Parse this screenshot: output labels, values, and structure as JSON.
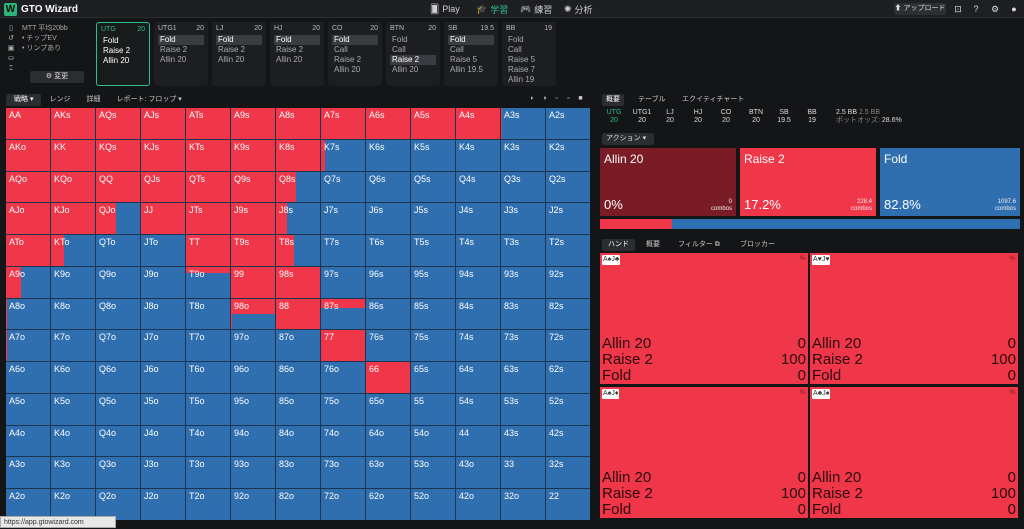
{
  "app": {
    "title": "GTO Wizard",
    "logo_letter": "W"
  },
  "nav": [
    {
      "label": "Play",
      "icon": "cards-icon"
    },
    {
      "label": "学習",
      "icon": "graduation-cap-icon",
      "active": true
    },
    {
      "label": "練習",
      "icon": "gamepad-icon"
    },
    {
      "label": "分析",
      "icon": "bulb-icon"
    }
  ],
  "header": {
    "upload_label": "⬆ アップロード"
  },
  "game": {
    "title": "MTT 平均20bb",
    "line1": "• チップEV",
    "line2": "• リンプあり",
    "change_label": "⚙ 変更"
  },
  "positions": [
    {
      "name": "UTG",
      "stack": "20",
      "actions": [
        "Fold",
        "Raise 2",
        "Allin 20"
      ],
      "selected": -1,
      "active": true
    },
    {
      "name": "UTG1",
      "stack": "20",
      "actions": [
        "Fold",
        "Raise 2",
        "Allin 20"
      ],
      "selected": 0
    },
    {
      "name": "LJ",
      "stack": "20",
      "actions": [
        "Fold",
        "Raise 2",
        "Allin 20"
      ],
      "selected": 0
    },
    {
      "name": "HJ",
      "stack": "20",
      "actions": [
        "Fold",
        "Raise 2",
        "Allin 20"
      ],
      "selected": 0
    },
    {
      "name": "CO",
      "stack": "20",
      "actions": [
        "Fold",
        "Call",
        "Raise 2",
        "Allin 20"
      ],
      "selected": 0
    },
    {
      "name": "BTN",
      "stack": "20",
      "actions": [
        "Fold",
        "Call",
        "Raise 2",
        "Allin 20"
      ],
      "selected": 2
    },
    {
      "name": "SB",
      "stack": "19.5",
      "actions": [
        "Fold",
        "Call",
        "Raise 5",
        "Allin 19.5"
      ],
      "selected": 0
    },
    {
      "name": "BB",
      "stack": "19",
      "actions": [
        "Fold",
        "Call",
        "Raise 5",
        "Raise 7",
        "Allin 19"
      ],
      "selected": -1
    }
  ],
  "left_tabs": {
    "strategy": "戦略 ▾",
    "range": "レンジ",
    "detail": "詳細",
    "report": "レポート: フロップ ▾"
  },
  "hand_grid": {
    "rows": [
      [
        "AA",
        "AKs",
        "AQs",
        "AJs",
        "ATs",
        "A9s",
        "A8s",
        "A7s",
        "A6s",
        "A5s",
        "A4s",
        "A3s",
        "A2s"
      ],
      [
        "AKo",
        "KK",
        "KQs",
        "KJs",
        "KTs",
        "K9s",
        "K8s",
        "K7s",
        "K6s",
        "K5s",
        "K4s",
        "K3s",
        "K2s"
      ],
      [
        "AQo",
        "KQo",
        "QQ",
        "QJs",
        "QTs",
        "Q9s",
        "Q8s",
        "Q7s",
        "Q6s",
        "Q5s",
        "Q4s",
        "Q3s",
        "Q2s"
      ],
      [
        "AJo",
        "KJo",
        "QJo",
        "JJ",
        "JTs",
        "J9s",
        "J8s",
        "J7s",
        "J6s",
        "J5s",
        "J4s",
        "J3s",
        "J2s"
      ],
      [
        "ATo",
        "KTo",
        "QTo",
        "JTo",
        "TT",
        "T9s",
        "T8s",
        "T7s",
        "T6s",
        "T5s",
        "T4s",
        "T3s",
        "T2s"
      ],
      [
        "A9o",
        "K9o",
        "Q9o",
        "J9o",
        "T9o",
        "99",
        "98s",
        "97s",
        "96s",
        "95s",
        "94s",
        "93s",
        "92s"
      ],
      [
        "A8o",
        "K8o",
        "Q8o",
        "J8o",
        "T8o",
        "98o",
        "88",
        "87s",
        "86s",
        "85s",
        "84s",
        "83s",
        "82s"
      ],
      [
        "A7o",
        "K7o",
        "Q7o",
        "J7o",
        "T7o",
        "97o",
        "87o",
        "77",
        "76s",
        "75s",
        "74s",
        "73s",
        "72s"
      ],
      [
        "A6o",
        "K6o",
        "Q6o",
        "J6o",
        "T6o",
        "96o",
        "86o",
        "76o",
        "66",
        "65s",
        "64s",
        "63s",
        "62s"
      ],
      [
        "A5o",
        "K5o",
        "Q5o",
        "J5o",
        "T5o",
        "95o",
        "85o",
        "75o",
        "65o",
        "55",
        "54s",
        "53s",
        "52s"
      ],
      [
        "A4o",
        "K4o",
        "Q4o",
        "J4o",
        "T4o",
        "94o",
        "84o",
        "74o",
        "64o",
        "54o",
        "44",
        "43s",
        "42s"
      ],
      [
        "A3o",
        "K3o",
        "Q3o",
        "J3o",
        "T3o",
        "93o",
        "83o",
        "73o",
        "63o",
        "53o",
        "43o",
        "33",
        "32s"
      ],
      [
        "A2o",
        "K2o",
        "Q2o",
        "J2o",
        "T2o",
        "92o",
        "82o",
        "72o",
        "62o",
        "52o",
        "42o",
        "32o",
        "22"
      ]
    ],
    "raise_freq": {
      "AA": 1,
      "AKs": 1,
      "AQs": 1,
      "AJs": 1,
      "ATs": 1,
      "A9s": 1,
      "A8s": 1,
      "A7s": 1,
      "A6s": 1,
      "A5s": 1,
      "A4s": 1,
      "A3s": 0.03,
      "AKo": 1,
      "KK": 1,
      "KQs": 1,
      "KJs": 1,
      "KTs": 1,
      "K9s": 1,
      "K8s": 1,
      "K7s": 0.1,
      "AQo": 1,
      "KQo": 1,
      "QQ": 1,
      "QJs": 1,
      "QTs": 1,
      "Q9s": 1,
      "Q8s": 0.45,
      "AJo": 1,
      "KJo": 1,
      "QJo": 0.45,
      "JJ": 1,
      "JTs": 1,
      "J9s": 1,
      "J8s": 0.25,
      "ATo": 1,
      "KTo": 0.3,
      "TT": 1,
      "T9s": 1,
      "T8s": 0.4,
      "A9o": 0.35,
      "99": 1,
      "98s": 1,
      "A8o": 0.02,
      "98o": 0.03,
      "88": 1,
      "A7o": 0.02,
      "77": 1,
      "66": 1
    },
    "partial_top": {
      "T9o": 0.2,
      "98o": 0.5,
      "88": 0.5,
      "87s": 0.3,
      "77": 0.45,
      "66": 0.5
    }
  },
  "url_status": "https://app.gtowizard.com",
  "right_tabs": {
    "overview": "概要",
    "table": "テーブル",
    "equity": "エクイティチャート"
  },
  "stacks": [
    {
      "pos": "UTG",
      "val": "20",
      "active": true
    },
    {
      "pos": "UTG1",
      "val": "20"
    },
    {
      "pos": "LJ",
      "val": "20"
    },
    {
      "pos": "HJ",
      "val": "20"
    },
    {
      "pos": "CO",
      "val": "20"
    },
    {
      "pos": "BTN",
      "val": "20"
    },
    {
      "pos": "SB",
      "val": "19.5"
    },
    {
      "pos": "BB",
      "val": "19"
    }
  ],
  "pot": {
    "bb": "2.5 BB",
    "bb2": "2.5 BB",
    "odds_label": "ポットオッズ:",
    "odds": "28.6%"
  },
  "action_drop": "アクション ▾",
  "actions": [
    {
      "name": "Allin 20",
      "pct": "0%",
      "combos": "0",
      "combos_label": "combos",
      "color": "#7a1c26"
    },
    {
      "name": "Raise 2",
      "pct": "17.2%",
      "combos": "228.4",
      "combos_label": "combos",
      "color": "#f0374a"
    },
    {
      "name": "Fold",
      "pct": "82.8%",
      "combos": "1097.6",
      "combos_label": "combos",
      "color": "#2f6fb0"
    }
  ],
  "freq": {
    "raise": 0.172,
    "fold": 0.828
  },
  "hand_tabs": {
    "hand": "ハンド",
    "overview": "概要",
    "filter": "フィルター ⧉",
    "blocker": "ブロッカー"
  },
  "combos": [
    {
      "card": "A♠J♣",
      "rows": [
        [
          "Allin 20",
          "0"
        ],
        [
          "Raise 2",
          "100"
        ],
        [
          "Fold",
          "0"
        ]
      ]
    },
    {
      "card": "A♥J♥",
      "rows": [
        [
          "Allin 20",
          "0"
        ],
        [
          "Raise 2",
          "100"
        ],
        [
          "Fold",
          "0"
        ]
      ]
    },
    {
      "card": "A♠J♦",
      "rows": [
        [
          "Allin 20",
          "0"
        ],
        [
          "Raise 2",
          "100"
        ],
        [
          "Fold",
          "0"
        ]
      ]
    },
    {
      "card": "A♣J♠",
      "rows": [
        [
          "Allin 20",
          "0"
        ],
        [
          "Raise 2",
          "100"
        ],
        [
          "Fold",
          "0"
        ]
      ]
    }
  ]
}
